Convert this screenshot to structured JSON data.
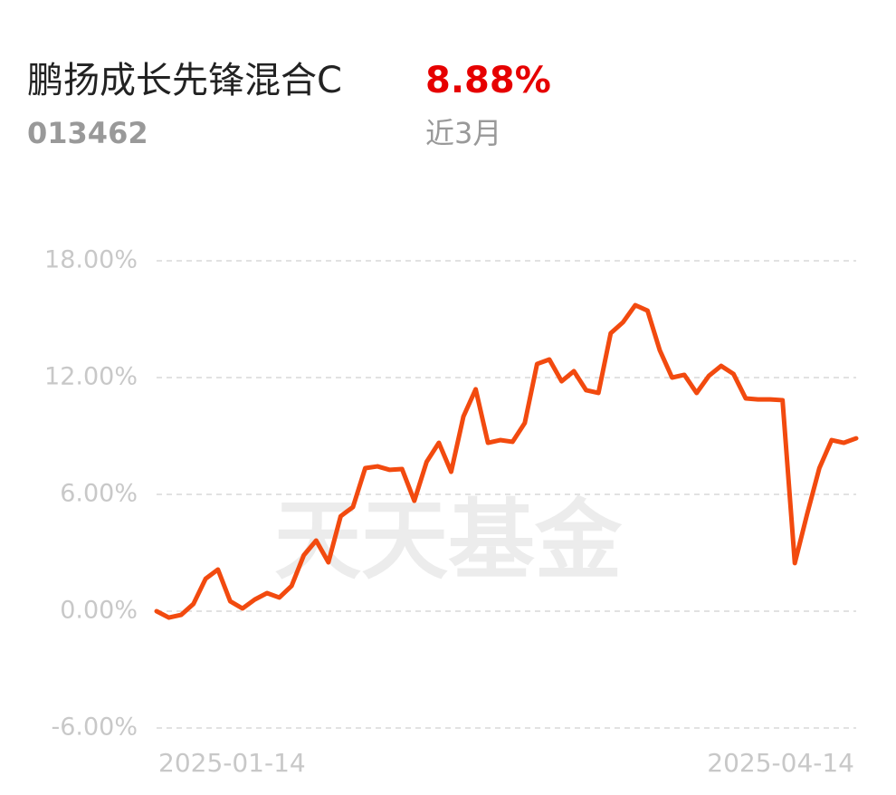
{
  "header": {
    "title": "鹏扬成长先锋混合C",
    "return": "8.88%",
    "code": "013462",
    "period": "近3月"
  },
  "chart_data": {
    "type": "line",
    "watermark": "天天基金",
    "categories": [
      "2025-01-14",
      null,
      null,
      null,
      null,
      null,
      null,
      null,
      null,
      null,
      null,
      null,
      null,
      null,
      null,
      null,
      null,
      null,
      null,
      null,
      null,
      null,
      null,
      null,
      null,
      null,
      null,
      null,
      null,
      null,
      null,
      null,
      null,
      null,
      null,
      null,
      null,
      null,
      null,
      null,
      null,
      null,
      null,
      null,
      null,
      null,
      null,
      null,
      null,
      null,
      null,
      null,
      null,
      null,
      null,
      null,
      null,
      "2025-04-14"
    ],
    "series": [
      {
        "color": "#f24a0f",
        "values": [
          0,
          -0.33,
          -0.19,
          0.37,
          1.67,
          2.14,
          0.51,
          0.14,
          0.6,
          0.93,
          0.7,
          1.3,
          2.88,
          3.63,
          2.51,
          4.88,
          5.35,
          7.35,
          7.44,
          7.26,
          7.3,
          5.67,
          7.67,
          8.65,
          7.16,
          10.0,
          11.4,
          8.65,
          8.79,
          8.7,
          9.67,
          12.7,
          12.93,
          11.81,
          12.33,
          11.35,
          11.21,
          14.28,
          14.84,
          15.72,
          15.44,
          13.4,
          12.0,
          12.14,
          11.21,
          12.09,
          12.6,
          12.19,
          10.93,
          10.88,
          10.88,
          10.84,
          2.47,
          4.98,
          7.35,
          8.79,
          8.65,
          8.88
        ]
      }
    ],
    "ylim": [
      -6,
      18
    ],
    "yticks": [
      {
        "value": -6,
        "label": "-6.00%"
      },
      {
        "value": 0,
        "label": "0.00%"
      },
      {
        "value": 6,
        "label": "6.00%"
      },
      {
        "value": 12,
        "label": "12.00%"
      },
      {
        "value": 18,
        "label": "18.00%"
      }
    ],
    "grid": true
  }
}
